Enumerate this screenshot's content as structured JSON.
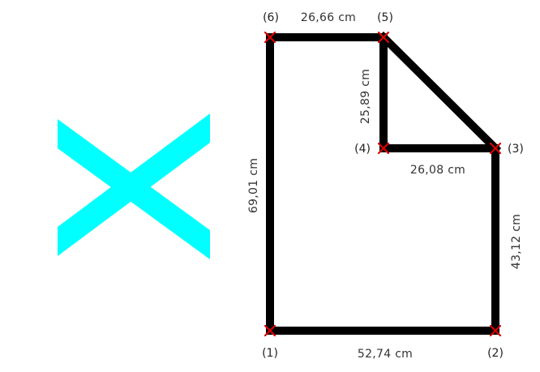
{
  "colors": {
    "edge": "#000000",
    "vertex_marker": "#dd0000",
    "cross_icon": "#00ffff",
    "background": "#ffffff"
  },
  "icon": "cyan-cross-icon",
  "points": {
    "p1": "(1)",
    "p2": "(2)",
    "p3": "(3)",
    "p4": "(4)",
    "p5": "(5)",
    "p6": "(6)"
  },
  "measurements": {
    "bottom": "52,74 cm",
    "right": "43,12 cm",
    "inner_horizontal": "26,08 cm",
    "inner_vertical": "25,89 cm",
    "top": "26,66 cm",
    "left": "69,01 cm"
  }
}
